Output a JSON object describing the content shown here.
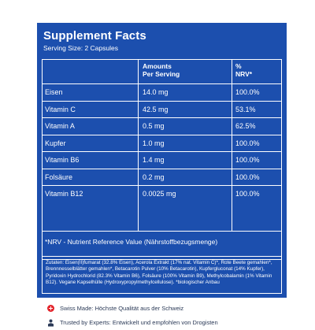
{
  "panel": {
    "title": "Supplement Facts",
    "serving": "Serving Size: 2 Capsules"
  },
  "table": {
    "header": {
      "amount_line1": "Amounts",
      "amount_line2": "Per Serving",
      "nrv_line1": "%",
      "nrv_line2": "NRV*"
    },
    "rows": [
      {
        "name": "Eisen",
        "amount": "14.0 mg",
        "nrv": "100.0%"
      },
      {
        "name": "Vitamin C",
        "amount": "42.5 mg",
        "nrv": "53.1%"
      },
      {
        "name": "Vitamin A",
        "amount": "0.5 mg",
        "nrv": "62.5%"
      },
      {
        "name": "Kupfer",
        "amount": "1.0 mg",
        "nrv": "100.0%"
      },
      {
        "name": "Vitamin B6",
        "amount": "1.4 mg",
        "nrv": "100.0%"
      },
      {
        "name": "Folsäure",
        "amount": "0.2 mg",
        "nrv": "100.0%"
      },
      {
        "name": "Vitamin B12",
        "amount": "0.0025 mg",
        "nrv": "100.0%"
      }
    ],
    "nrv_note": "*NRV - Nutrient Reference Value (Nährstoffbezugsmenge)"
  },
  "ingredients": "Zutaten: Eisen(II)fumarat (32.8% Eisen), Acerola Extrakt (17% nat. Vitamin C)*, Rote Beete gemahlen*, Brennnesselblätter gemahlen*, Betacarotin Pulver (10% Betacarotin), Kupfergluconat (14% Kupfer), Pyridoxin Hydrochlorid (82.3% Vitamin B6), Folsäure (100% Vitamin B9), Methylcobalamin (1% Vitamin B12). Vegane Kapselhülle (Hydroxypropylmethylcellulose). *biologischer Anbau",
  "footer": {
    "swiss": "Swiss Made: Höchste Qualität aus der Schweiz",
    "experts": "Trusted by Experts: Entwickelt und empfohlen von Drogisten"
  },
  "colors": {
    "panel_bg": "#1c4fae",
    "swiss_red": "#e3242b"
  }
}
